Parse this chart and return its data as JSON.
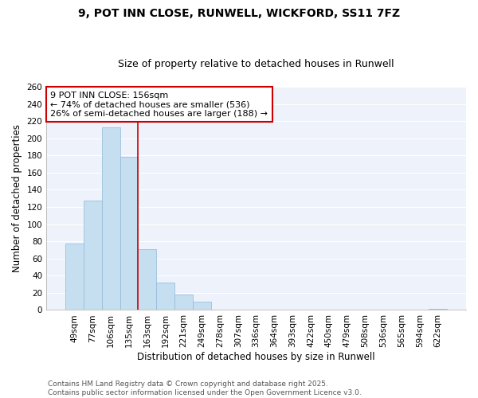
{
  "title": "9, POT INN CLOSE, RUNWELL, WICKFORD, SS11 7FZ",
  "subtitle": "Size of property relative to detached houses in Runwell",
  "xlabel": "Distribution of detached houses by size in Runwell",
  "ylabel": "Number of detached properties",
  "categories": [
    "49sqm",
    "77sqm",
    "106sqm",
    "135sqm",
    "163sqm",
    "192sqm",
    "221sqm",
    "249sqm",
    "278sqm",
    "307sqm",
    "336sqm",
    "364sqm",
    "393sqm",
    "422sqm",
    "450sqm",
    "479sqm",
    "508sqm",
    "536sqm",
    "565sqm",
    "594sqm",
    "622sqm"
  ],
  "values": [
    77,
    127,
    213,
    178,
    71,
    32,
    18,
    10,
    0,
    0,
    0,
    0,
    0,
    0,
    0,
    0,
    0,
    0,
    0,
    0,
    1
  ],
  "bar_color": "#c5dff0",
  "bar_edge_color": "#90b8d8",
  "vline_x_index": 3,
  "vline_color": "#cc0000",
  "annotation_line1": "9 POT INN CLOSE: 156sqm",
  "annotation_line2": "← 74% of detached houses are smaller (536)",
  "annotation_line3": "26% of semi-detached houses are larger (188) →",
  "annotation_box_color": "white",
  "annotation_box_edge": "#cc0000",
  "ylim": [
    0,
    260
  ],
  "yticks": [
    0,
    20,
    40,
    60,
    80,
    100,
    120,
    140,
    160,
    180,
    200,
    220,
    240,
    260
  ],
  "footer_line1": "Contains HM Land Registry data © Crown copyright and database right 2025.",
  "footer_line2": "Contains public sector information licensed under the Open Government Licence v3.0.",
  "bg_color": "#eef2fb",
  "grid_color": "white",
  "title_fontsize": 10,
  "subtitle_fontsize": 9,
  "axis_label_fontsize": 8.5,
  "tick_fontsize": 7.5,
  "annotation_fontsize": 8,
  "footer_fontsize": 6.5
}
